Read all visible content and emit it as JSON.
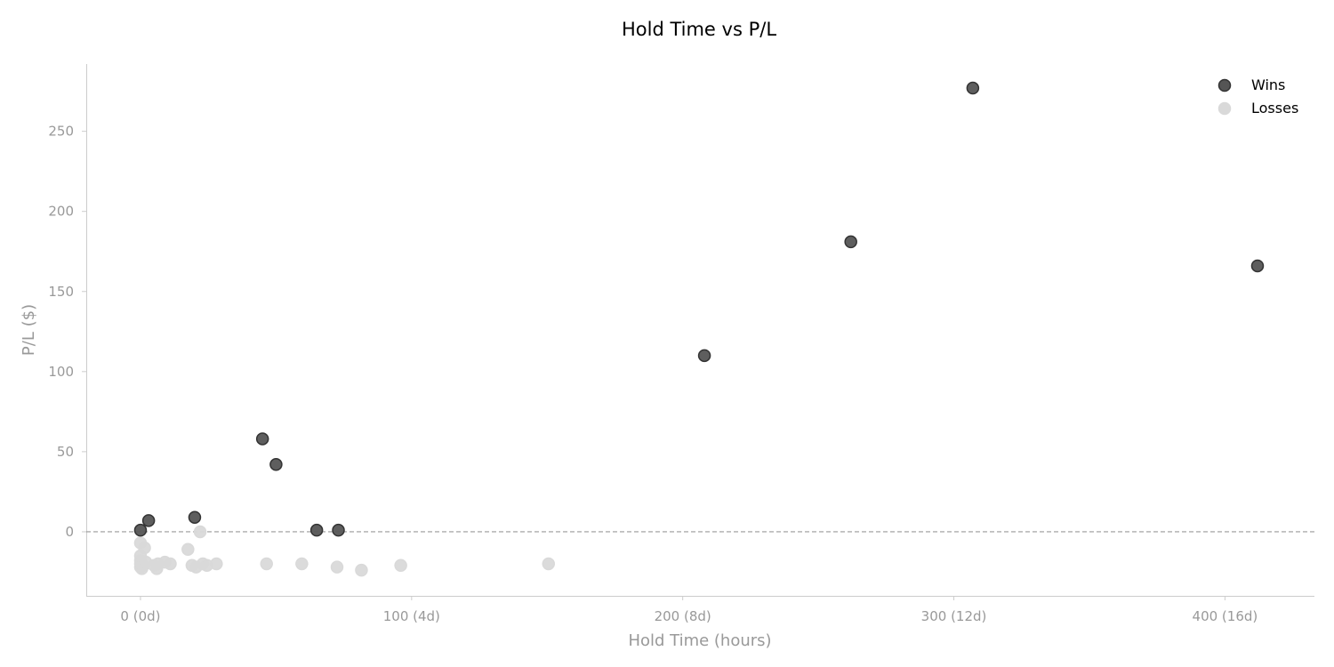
{
  "chart_data": {
    "type": "scatter",
    "title": "Hold Time vs P/L",
    "xlabel": "Hold Time (hours)",
    "ylabel": "P/L ($)",
    "xlim": [
      -20,
      433
    ],
    "ylim": [
      -40,
      292
    ],
    "x_ticks": [
      {
        "value": 0,
        "label": "0 (0d)"
      },
      {
        "value": 100,
        "label": "100 (4d)"
      },
      {
        "value": 200,
        "label": "200 (8d)"
      },
      {
        "value": 300,
        "label": "300 (12d)"
      },
      {
        "value": 400,
        "label": "400 (16d)"
      }
    ],
    "y_ticks": [
      {
        "value": 0,
        "label": "0"
      },
      {
        "value": 50,
        "label": "50"
      },
      {
        "value": 100,
        "label": "100"
      },
      {
        "value": 150,
        "label": "150"
      },
      {
        "value": 200,
        "label": "200"
      },
      {
        "value": 250,
        "label": "250"
      }
    ],
    "reference_line": {
      "y": 0,
      "style": "dashed",
      "color": "#999999"
    },
    "legend_position": "top-right",
    "grid": false,
    "series": [
      {
        "name": "Wins",
        "color": "#555555",
        "edge_color": "#333333",
        "points": [
          {
            "x": 0,
            "y": 1
          },
          {
            "x": 3,
            "y": 7
          },
          {
            "x": 20,
            "y": 9
          },
          {
            "x": 45,
            "y": 58
          },
          {
            "x": 50,
            "y": 42
          },
          {
            "x": 65,
            "y": 1
          },
          {
            "x": 73,
            "y": 1
          },
          {
            "x": 208,
            "y": 110
          },
          {
            "x": 262,
            "y": 181
          },
          {
            "x": 307,
            "y": 277
          },
          {
            "x": 412,
            "y": 166
          }
        ]
      },
      {
        "name": "Losses",
        "color": "#d9d9d9",
        "edge_color": "#d9d9d9",
        "points": [
          {
            "x": 0,
            "y": -7
          },
          {
            "x": 1.5,
            "y": -10
          },
          {
            "x": 0,
            "y": -15
          },
          {
            "x": 0,
            "y": -18
          },
          {
            "x": 0,
            "y": -20
          },
          {
            "x": 0,
            "y": -22
          },
          {
            "x": 0.5,
            "y": -23
          },
          {
            "x": 1,
            "y": -21
          },
          {
            "x": 2,
            "y": -19
          },
          {
            "x": 5,
            "y": -21
          },
          {
            "x": 6,
            "y": -23
          },
          {
            "x": 6.5,
            "y": -20
          },
          {
            "x": 9,
            "y": -19
          },
          {
            "x": 11,
            "y": -20
          },
          {
            "x": 17.5,
            "y": -11
          },
          {
            "x": 19,
            "y": -21
          },
          {
            "x": 20.5,
            "y": -22
          },
          {
            "x": 22,
            "y": 0
          },
          {
            "x": 23,
            "y": -20
          },
          {
            "x": 24.5,
            "y": -21
          },
          {
            "x": 28,
            "y": -20
          },
          {
            "x": 46.5,
            "y": -20
          },
          {
            "x": 59.5,
            "y": -20
          },
          {
            "x": 72.5,
            "y": -22
          },
          {
            "x": 81.5,
            "y": -24
          },
          {
            "x": 96,
            "y": -21
          },
          {
            "x": 150.5,
            "y": -20
          }
        ]
      }
    ]
  }
}
